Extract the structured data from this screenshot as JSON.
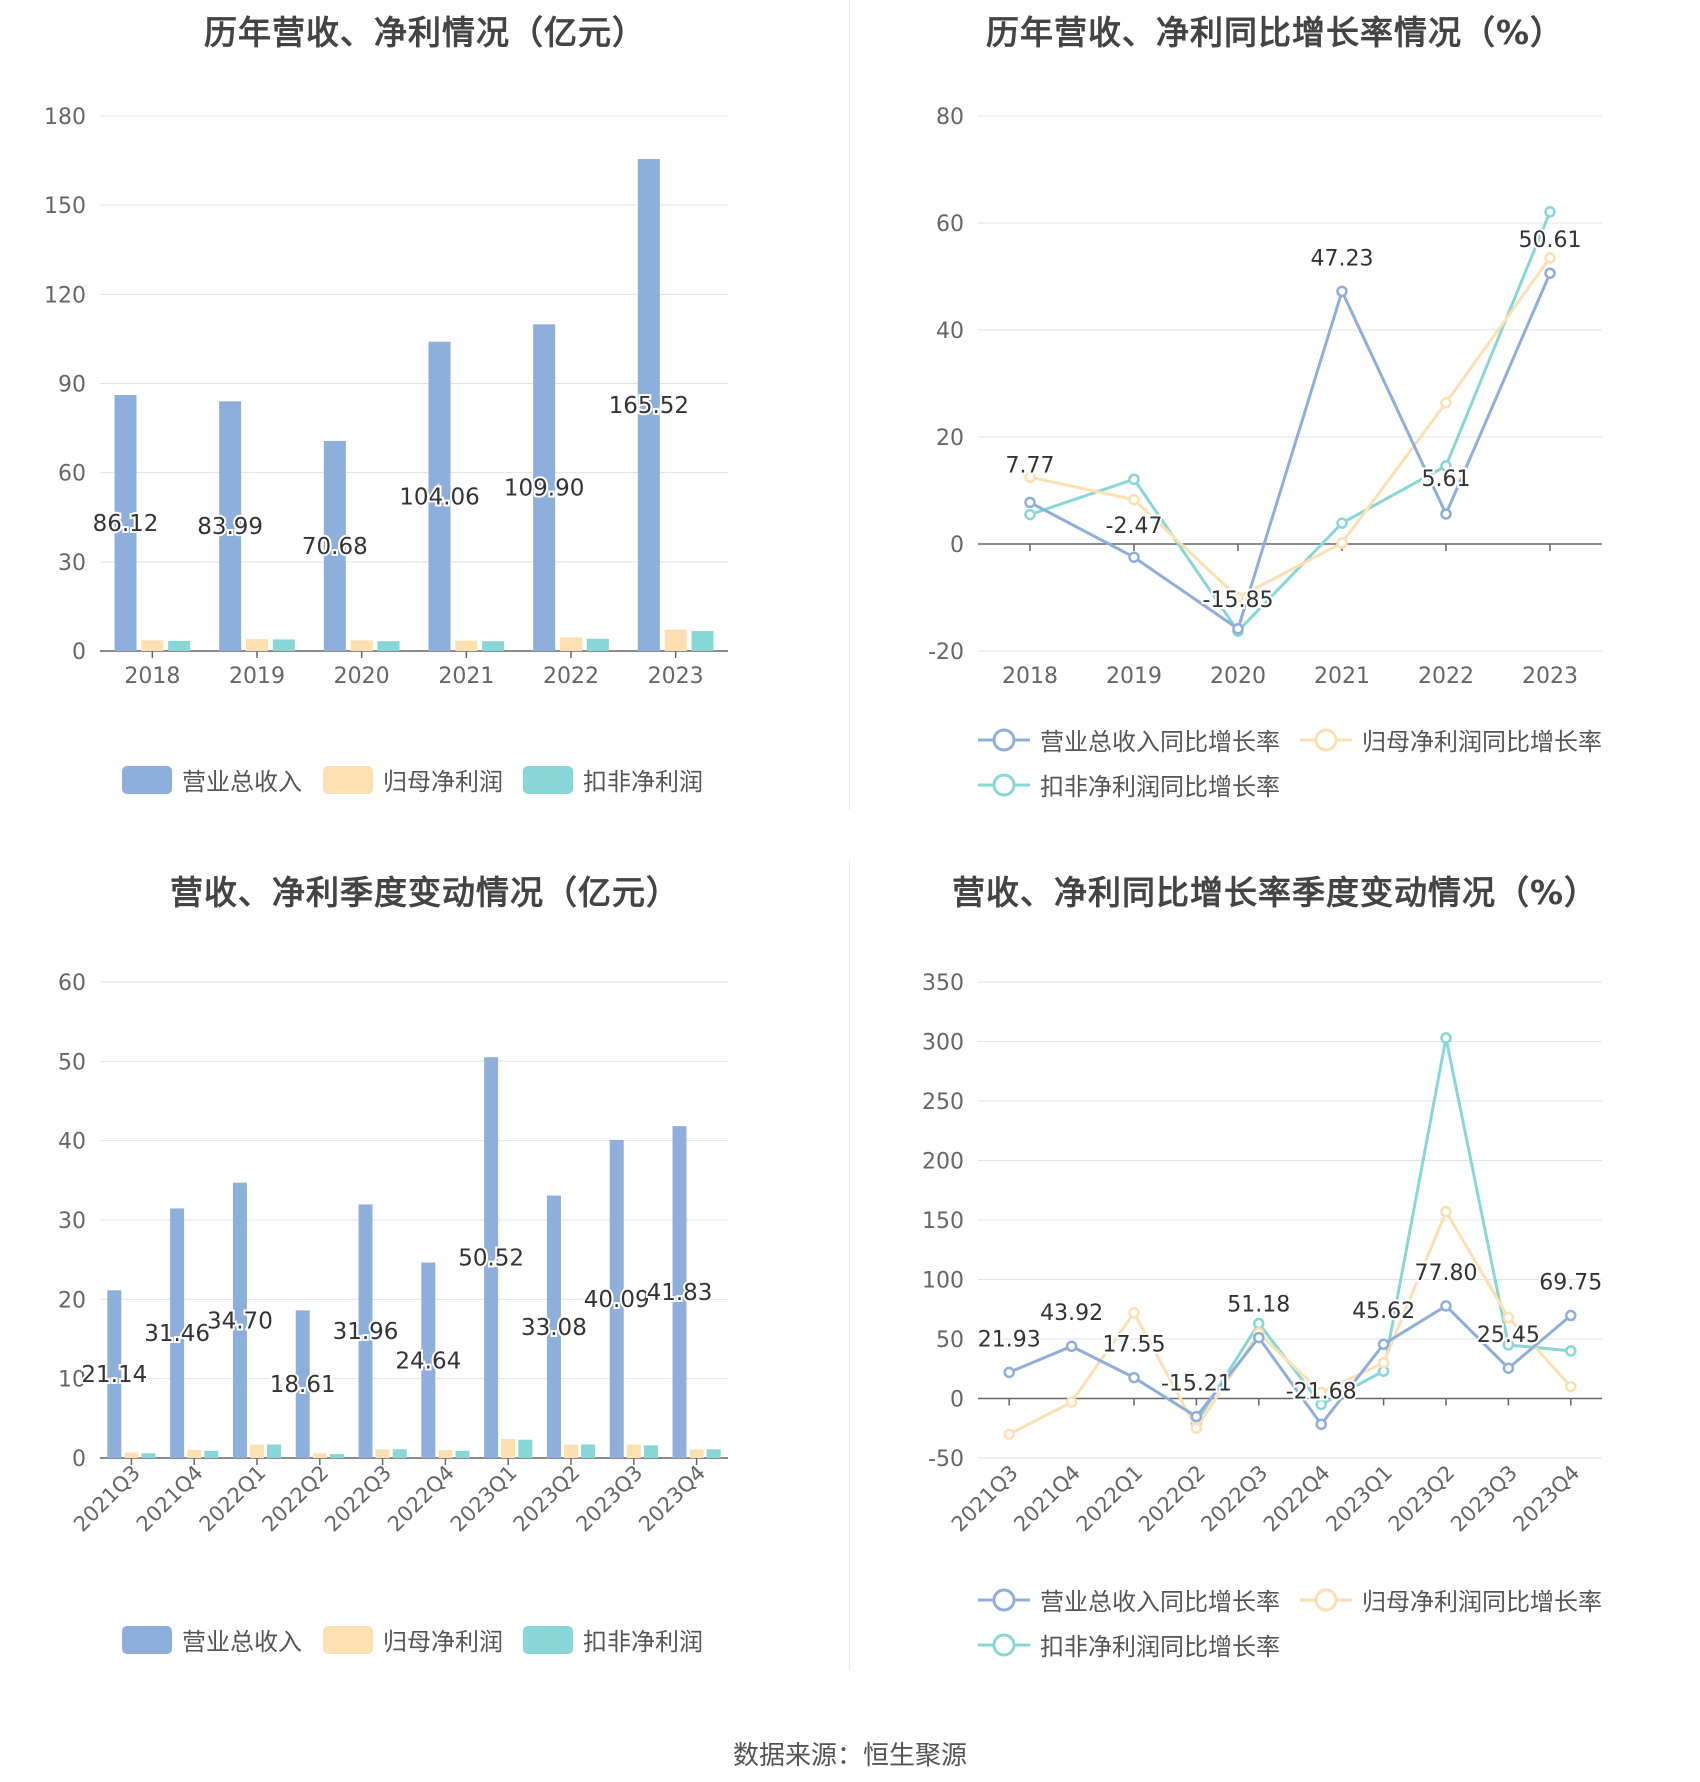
{
  "colors": {
    "revenue": "#8eaedc",
    "net_profit": "#fde0b2",
    "deducted_profit": "#87d7d7"
  },
  "source": "数据来源：恒生聚源",
  "chart_data": [
    {
      "type": "bar",
      "title": "历年营收、净利情况（亿元）",
      "categories": [
        "2018",
        "2019",
        "2020",
        "2021",
        "2022",
        "2023"
      ],
      "ylim": [
        0,
        180
      ],
      "yticks": [
        0,
        30,
        60,
        90,
        120,
        150,
        180
      ],
      "legend_position": "bottom",
      "grid": true,
      "series": [
        {
          "name": "营业总收入",
          "values": [
            86.12,
            83.99,
            70.68,
            104.06,
            109.9,
            165.52
          ],
          "labels": [
            "86.12",
            "83.99",
            "70.68",
            "104.06",
            "109.90",
            "165.52"
          ]
        },
        {
          "name": "归母净利润",
          "values": [
            3.6,
            4.0,
            3.6,
            3.5,
            4.6,
            7.2
          ]
        },
        {
          "name": "扣非净利润",
          "values": [
            3.4,
            3.9,
            3.3,
            3.3,
            4.1,
            6.7
          ]
        }
      ]
    },
    {
      "type": "line",
      "title": "历年营收、净利同比增长率情况（%）",
      "categories": [
        "2018",
        "2019",
        "2020",
        "2021",
        "2022",
        "2023"
      ],
      "ylim": [
        -20,
        80
      ],
      "yticks": [
        -20,
        0,
        20,
        40,
        60,
        80
      ],
      "legend_position": "bottom",
      "grid": true,
      "series": [
        {
          "name": "营业总收入同比增长率",
          "values": [
            7.77,
            -2.47,
            -15.85,
            47.23,
            5.61,
            50.61
          ],
          "labels": [
            "7.77",
            "-2.47",
            "-15.85",
            "47.23",
            "5.61",
            "50.61"
          ]
        },
        {
          "name": "归母净利润同比增长率",
          "values": [
            12.5,
            8.3,
            -10.0,
            0.2,
            26.4,
            53.5
          ]
        },
        {
          "name": "扣非净利润同比增长率",
          "values": [
            5.5,
            12.1,
            -16.3,
            3.9,
            14.6,
            62.1
          ]
        }
      ]
    },
    {
      "type": "bar",
      "title": "营收、净利季度变动情况（亿元）",
      "categories": [
        "2021Q3",
        "2021Q4",
        "2022Q1",
        "2022Q2",
        "2022Q3",
        "2022Q4",
        "2023Q1",
        "2023Q2",
        "2023Q3",
        "2023Q4"
      ],
      "ylim": [
        0,
        60
      ],
      "yticks": [
        0,
        10,
        20,
        30,
        40,
        50,
        60
      ],
      "legend_position": "bottom",
      "grid": true,
      "series": [
        {
          "name": "营业总收入",
          "values": [
            21.14,
            31.46,
            34.7,
            18.61,
            31.96,
            24.64,
            50.52,
            33.08,
            40.09,
            41.83
          ],
          "labels": [
            "21.14",
            "31.46",
            "34.70",
            "18.61",
            "31.96",
            "24.64",
            "50.52",
            "33.08",
            "40.09",
            "41.83"
          ]
        },
        {
          "name": "归母净利润",
          "values": [
            0.7,
            1.0,
            1.7,
            0.6,
            1.1,
            1.0,
            2.4,
            1.7,
            1.7,
            1.1
          ]
        },
        {
          "name": "扣非净利润",
          "values": [
            0.6,
            0.9,
            1.7,
            0.5,
            1.1,
            0.9,
            2.3,
            1.7,
            1.6,
            1.1
          ]
        }
      ]
    },
    {
      "type": "line",
      "title": "营收、净利同比增长率季度变动情况（%）",
      "categories": [
        "2021Q3",
        "2021Q4",
        "2022Q1",
        "2022Q2",
        "2022Q3",
        "2022Q4",
        "2023Q1",
        "2023Q2",
        "2023Q3",
        "2023Q4"
      ],
      "ylim": [
        -50,
        350
      ],
      "yticks": [
        -50,
        0,
        50,
        100,
        150,
        200,
        250,
        300,
        350
      ],
      "legend_position": "bottom",
      "grid": true,
      "series": [
        {
          "name": "营业总收入同比增长率",
          "values": [
            21.93,
            43.92,
            17.55,
            -15.21,
            51.18,
            -21.68,
            45.62,
            77.8,
            25.45,
            69.75
          ],
          "labels": [
            "21.93",
            "43.92",
            "17.55",
            "-15.21",
            "51.18",
            "-21.68",
            "45.62",
            "77.80",
            "25.45",
            "69.75"
          ]
        },
        {
          "name": "归母净利润同比增长率",
          "values": [
            -30,
            -3,
            72,
            -25,
            55,
            5,
            30,
            157,
            68,
            10
          ]
        },
        {
          "name": "扣非净利润同比增长率",
          "values": [
            null,
            null,
            null,
            -20,
            63,
            -5,
            23,
            303,
            45,
            40
          ]
        }
      ]
    }
  ]
}
